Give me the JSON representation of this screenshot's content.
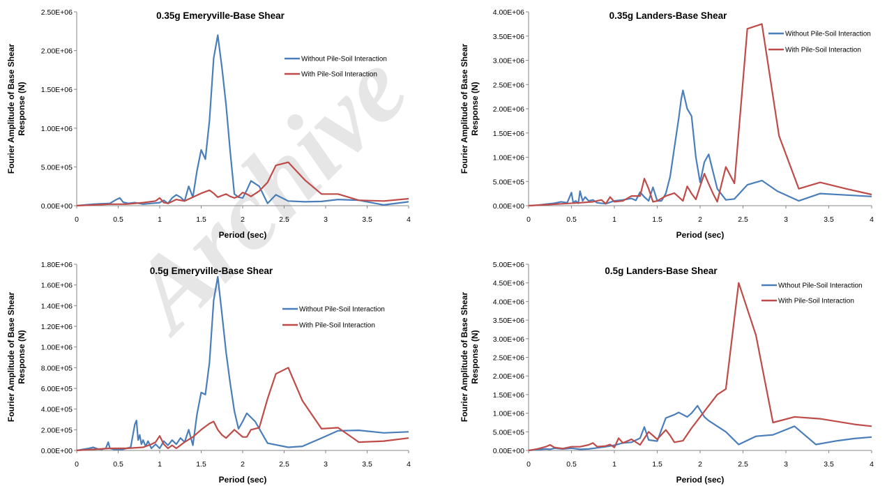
{
  "watermark": "Archive",
  "chart_data": [
    {
      "type": "line",
      "title": "0.35g Emeryville-Base Shear",
      "xlabel": "Period (sec)",
      "ylabel_lines": [
        "Fourier Amplitude of Base Shear",
        "Response (N)"
      ],
      "xlim": [
        0,
        4
      ],
      "ylim": [
        0,
        2500000
      ],
      "x_ticks": [
        "0",
        "0.5",
        "1",
        "1.5",
        "2",
        "2.5",
        "3",
        "3.5",
        "4"
      ],
      "y_ticks": [
        "0.00E+00",
        "5.00E+05",
        "1.00E+06",
        "1.50E+06",
        "2.00E+06",
        "2.50E+06"
      ],
      "legend_position": "top-right",
      "series": [
        {
          "name": "Without Pile-Soil Interaction",
          "color": "#4a7ebb",
          "x": [
            0.0,
            0.1,
            0.2,
            0.3,
            0.4,
            0.48,
            0.52,
            0.56,
            0.62,
            0.7,
            0.8,
            0.9,
            1.0,
            1.05,
            1.1,
            1.15,
            1.2,
            1.25,
            1.3,
            1.35,
            1.4,
            1.45,
            1.5,
            1.55,
            1.6,
            1.65,
            1.7,
            1.75,
            1.8,
            1.85,
            1.9,
            1.95,
            2.0,
            2.05,
            2.1,
            2.2,
            2.3,
            2.4,
            2.55,
            2.75,
            2.95,
            3.15,
            3.4,
            3.7,
            4.0
          ],
          "y": [
            0,
            10000,
            20000,
            25000,
            30000,
            80000,
            100000,
            45000,
            30000,
            40000,
            20000,
            30000,
            40000,
            70000,
            30000,
            100000,
            140000,
            110000,
            60000,
            250000,
            110000,
            450000,
            720000,
            600000,
            1100000,
            1900000,
            2200000,
            1780000,
            1300000,
            700000,
            150000,
            110000,
            100000,
            200000,
            320000,
            250000,
            30000,
            140000,
            60000,
            50000,
            55000,
            80000,
            70000,
            10000,
            50000
          ]
        },
        {
          "name": "With Pile-Soil Interaction",
          "color": "#be4b48",
          "x": [
            0.0,
            0.2,
            0.4,
            0.6,
            0.8,
            0.95,
            1.0,
            1.05,
            1.1,
            1.2,
            1.3,
            1.4,
            1.5,
            1.6,
            1.65,
            1.7,
            1.75,
            1.8,
            1.85,
            1.9,
            1.95,
            2.0,
            2.05,
            2.1,
            2.2,
            2.3,
            2.4,
            2.55,
            2.75,
            2.95,
            3.15,
            3.4,
            3.7,
            4.0
          ],
          "y": [
            0,
            10000,
            20000,
            20000,
            40000,
            60000,
            100000,
            40000,
            30000,
            80000,
            60000,
            110000,
            160000,
            200000,
            160000,
            110000,
            130000,
            150000,
            120000,
            100000,
            120000,
            170000,
            150000,
            120000,
            190000,
            300000,
            520000,
            560000,
            330000,
            150000,
            150000,
            70000,
            60000,
            90000
          ]
        }
      ]
    },
    {
      "type": "line",
      "title": "0.35g Landers-Base Shear",
      "xlabel": "Period (sec)",
      "ylabel_lines": [
        "Fourier Amplitude of Base Shear",
        "Response (N)"
      ],
      "xlim": [
        0,
        4
      ],
      "ylim": [
        0,
        4000000
      ],
      "x_ticks": [
        "0",
        "0.5",
        "1",
        "1.5",
        "2",
        "2.5",
        "3",
        "3.5",
        "4"
      ],
      "y_ticks": [
        "0.00E+00",
        "5.00E+05",
        "1.00E+06",
        "1.50E+06",
        "2.00E+06",
        "2.50E+06",
        "3.00E+06",
        "3.50E+06",
        "4.00E+06"
      ],
      "legend_position": "top-right",
      "series": [
        {
          "name": "Without Pile-Soil Interaction",
          "color": "#4a7ebb",
          "x": [
            0.0,
            0.1,
            0.2,
            0.3,
            0.38,
            0.45,
            0.5,
            0.52,
            0.55,
            0.58,
            0.6,
            0.63,
            0.66,
            0.7,
            0.75,
            0.8,
            0.9,
            1.0,
            1.1,
            1.2,
            1.25,
            1.3,
            1.35,
            1.4,
            1.45,
            1.5,
            1.55,
            1.6,
            1.65,
            1.7,
            1.75,
            1.78,
            1.8,
            1.85,
            1.9,
            1.95,
            2.0,
            2.05,
            2.1,
            2.15,
            2.2,
            2.3,
            2.4,
            2.55,
            2.72,
            2.9,
            3.15,
            3.4,
            3.7,
            4.0
          ],
          "y": [
            0,
            10000,
            30000,
            50000,
            80000,
            60000,
            270000,
            60000,
            100000,
            50000,
            300000,
            100000,
            180000,
            100000,
            120000,
            60000,
            40000,
            100000,
            120000,
            150000,
            110000,
            280000,
            180000,
            100000,
            380000,
            100000,
            100000,
            250000,
            600000,
            1200000,
            1800000,
            2200000,
            2380000,
            2000000,
            1850000,
            1000000,
            480000,
            900000,
            1060000,
            700000,
            350000,
            120000,
            140000,
            430000,
            520000,
            300000,
            100000,
            250000,
            220000,
            190000
          ]
        },
        {
          "name": "With Pile-Soil Interaction",
          "color": "#be4b48",
          "x": [
            0.0,
            0.2,
            0.4,
            0.6,
            0.75,
            0.85,
            0.9,
            0.95,
            1.0,
            1.1,
            1.2,
            1.3,
            1.35,
            1.4,
            1.45,
            1.5,
            1.6,
            1.7,
            1.8,
            1.85,
            1.9,
            1.95,
            2.0,
            2.05,
            2.1,
            2.15,
            2.2,
            2.25,
            2.3,
            2.4,
            2.55,
            2.72,
            2.92,
            3.15,
            3.4,
            3.7,
            4.0
          ],
          "y": [
            0,
            20000,
            40000,
            60000,
            80000,
            120000,
            40000,
            180000,
            80000,
            100000,
            200000,
            200000,
            560000,
            350000,
            80000,
            100000,
            200000,
            260000,
            100000,
            400000,
            250000,
            130000,
            400000,
            660000,
            450000,
            250000,
            80000,
            450000,
            800000,
            460000,
            3650000,
            3750000,
            1440000,
            350000,
            480000,
            350000,
            230000
          ]
        }
      ]
    },
    {
      "type": "line",
      "title": "0.5g Emeryville-Base Shear",
      "xlabel": "Period (sec)",
      "ylabel_lines": [
        "Fourier Amplitude of Base Shear",
        "Response (N)"
      ],
      "xlim": [
        0,
        4
      ],
      "ylim": [
        0,
        1800000
      ],
      "x_ticks": [
        "0",
        "0.5",
        "1",
        "1.5",
        "2",
        "2.5",
        "3",
        "3.5",
        "4"
      ],
      "y_ticks": [
        "0.00E+00",
        "2.00E+05",
        "4.00E+05",
        "6.00E+05",
        "8.00E+05",
        "1.00E+06",
        "1.20E+06",
        "1.40E+06",
        "1.60E+06",
        "1.80E+06"
      ],
      "legend_position": "top-right",
      "series": [
        {
          "name": "Without Pile-Soil Interaction",
          "color": "#4a7ebb",
          "x": [
            0.0,
            0.15,
            0.2,
            0.25,
            0.3,
            0.35,
            0.38,
            0.4,
            0.45,
            0.55,
            0.65,
            0.7,
            0.72,
            0.74,
            0.76,
            0.78,
            0.8,
            0.83,
            0.86,
            0.9,
            0.95,
            1.0,
            1.05,
            1.1,
            1.15,
            1.2,
            1.25,
            1.3,
            1.35,
            1.4,
            1.45,
            1.5,
            1.55,
            1.6,
            1.65,
            1.7,
            1.75,
            1.8,
            1.85,
            1.9,
            1.95,
            2.0,
            2.05,
            2.15,
            2.3,
            2.55,
            2.72,
            2.95,
            3.15,
            3.4,
            3.7,
            4.0
          ],
          "y": [
            0,
            20000,
            30000,
            15000,
            10000,
            20000,
            80000,
            20000,
            10000,
            10000,
            30000,
            250000,
            290000,
            100000,
            150000,
            60000,
            100000,
            40000,
            90000,
            20000,
            60000,
            20000,
            90000,
            50000,
            100000,
            60000,
            120000,
            80000,
            200000,
            50000,
            350000,
            560000,
            540000,
            850000,
            1450000,
            1680000,
            1320000,
            950000,
            650000,
            380000,
            210000,
            280000,
            360000,
            280000,
            70000,
            30000,
            40000,
            120000,
            190000,
            195000,
            170000,
            180000
          ]
        },
        {
          "name": "With Pile-Soil Interaction",
          "color": "#be4b48",
          "x": [
            0.0,
            0.2,
            0.4,
            0.6,
            0.8,
            0.9,
            0.95,
            1.0,
            1.05,
            1.1,
            1.15,
            1.2,
            1.3,
            1.4,
            1.5,
            1.6,
            1.65,
            1.7,
            1.75,
            1.8,
            1.85,
            1.9,
            2.0,
            2.05,
            2.1,
            2.2,
            2.3,
            2.4,
            2.55,
            2.72,
            2.95,
            3.15,
            3.4,
            3.7,
            4.0
          ],
          "y": [
            0,
            10000,
            20000,
            20000,
            30000,
            60000,
            80000,
            140000,
            60000,
            20000,
            50000,
            20000,
            80000,
            130000,
            200000,
            260000,
            280000,
            200000,
            150000,
            120000,
            160000,
            200000,
            130000,
            130000,
            200000,
            220000,
            500000,
            740000,
            800000,
            480000,
            210000,
            220000,
            80000,
            90000,
            120000
          ]
        }
      ]
    },
    {
      "type": "line",
      "title": "0.5g Landers-Base Shear",
      "xlabel": "Period (sec)",
      "ylabel_lines": [
        "Fourier Amplitude of Base Shear",
        "Response (N)"
      ],
      "xlim": [
        0,
        4
      ],
      "ylim": [
        0,
        5000000
      ],
      "x_ticks": [
        "0",
        "0.5",
        "1",
        "1.5",
        "2",
        "2.5",
        "3",
        "3.5",
        "4"
      ],
      "y_ticks": [
        "0.00E+00",
        "5.00E+05",
        "1.00E+06",
        "1.50E+06",
        "2.00E+06",
        "2.50E+06",
        "3.00E+06",
        "3.50E+06",
        "4.00E+06",
        "4.50E+06",
        "5.00E+06"
      ],
      "legend_position": "top-right",
      "series": [
        {
          "name": "Wthout Pile-Soil Interaction",
          "color": "#4a7ebb",
          "x": [
            0.0,
            0.1,
            0.2,
            0.25,
            0.3,
            0.4,
            0.5,
            0.6,
            0.7,
            0.8,
            0.9,
            1.0,
            1.1,
            1.2,
            1.3,
            1.35,
            1.4,
            1.5,
            1.6,
            1.7,
            1.75,
            1.8,
            1.85,
            1.9,
            1.97,
            2.05,
            2.1,
            2.2,
            2.3,
            2.45,
            2.65,
            2.85,
            3.1,
            3.35,
            3.6,
            3.8,
            4.0
          ],
          "y": [
            0,
            20000,
            40000,
            30000,
            60000,
            40000,
            60000,
            30000,
            40000,
            70000,
            100000,
            140000,
            200000,
            220000,
            330000,
            630000,
            280000,
            250000,
            870000,
            960000,
            1020000,
            960000,
            900000,
            1000000,
            1200000,
            900000,
            800000,
            650000,
            500000,
            160000,
            380000,
            420000,
            650000,
            160000,
            260000,
            320000,
            360000
          ]
        },
        {
          "name": "With Pile-Soil Interaction",
          "color": "#be4b48",
          "x": [
            0.0,
            0.1,
            0.2,
            0.25,
            0.3,
            0.4,
            0.5,
            0.6,
            0.7,
            0.75,
            0.8,
            0.9,
            0.95,
            1.0,
            1.05,
            1.1,
            1.2,
            1.3,
            1.4,
            1.5,
            1.6,
            1.65,
            1.7,
            1.8,
            1.9,
            2.0,
            2.1,
            2.2,
            2.3,
            2.45,
            2.65,
            2.85,
            3.1,
            3.4,
            3.8,
            4.0
          ],
          "y": [
            0,
            40000,
            100000,
            150000,
            80000,
            50000,
            100000,
            100000,
            150000,
            200000,
            100000,
            120000,
            160000,
            80000,
            330000,
            200000,
            300000,
            150000,
            500000,
            300000,
            550000,
            400000,
            220000,
            260000,
            600000,
            900000,
            1200000,
            1500000,
            1650000,
            4500000,
            3100000,
            750000,
            900000,
            850000,
            700000,
            650000
          ]
        }
      ]
    }
  ]
}
